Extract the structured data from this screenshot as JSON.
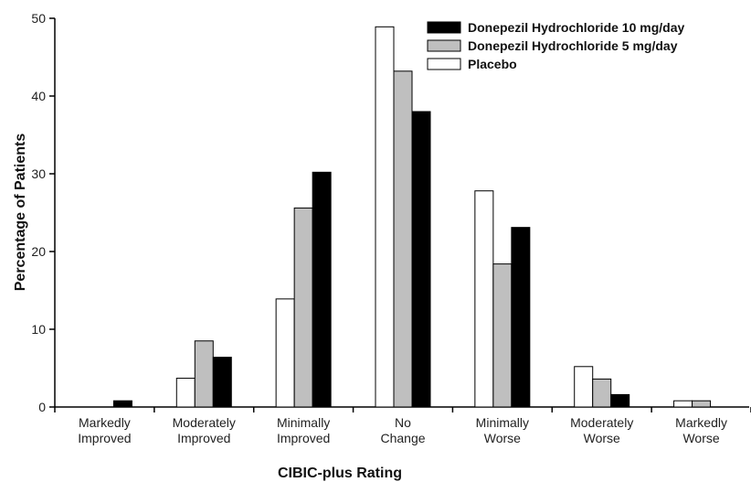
{
  "chart_data": {
    "type": "bar",
    "title": "",
    "xlabel": "CIBIC-plus Rating",
    "ylabel": "Percentage of Patients",
    "ylim": [
      0,
      50
    ],
    "yticks": [
      0,
      10,
      20,
      30,
      40,
      50
    ],
    "grid": false,
    "legend_position": "top-right",
    "categories": [
      [
        "Markedly",
        "Improved"
      ],
      [
        "Moderately",
        "Improved"
      ],
      [
        "Minimally",
        "Improved"
      ],
      [
        "No",
        "Change"
      ],
      [
        "Minimally",
        "Worse"
      ],
      [
        "Moderately",
        "Worse"
      ],
      [
        "Markedly",
        "Worse"
      ]
    ],
    "series": [
      {
        "name": "Placebo",
        "color": "#ffffff",
        "values": [
          0,
          3.7,
          13.9,
          48.9,
          27.8,
          5.2,
          0.8
        ]
      },
      {
        "name": "Donepezil Hydrochloride 5 mg/day",
        "color": "#bfbfbf",
        "values": [
          0,
          8.5,
          25.6,
          43.2,
          18.4,
          3.6,
          0.8
        ]
      },
      {
        "name": "Donepezil Hydrochloride 10 mg/day",
        "color": "#000000",
        "values": [
          0.8,
          6.4,
          30.2,
          38.0,
          23.1,
          1.6,
          0
        ]
      }
    ],
    "legend_order": [
      2,
      1,
      0
    ]
  }
}
